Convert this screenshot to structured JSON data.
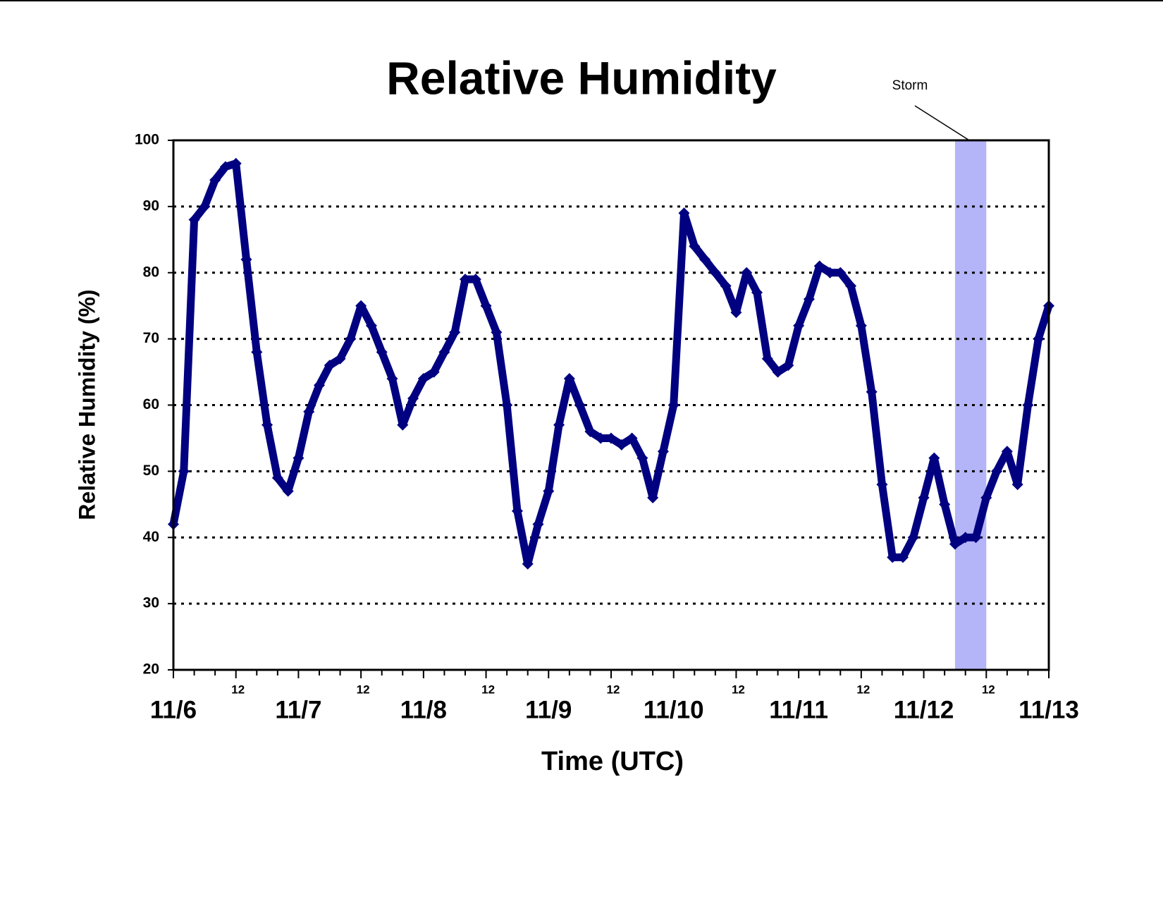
{
  "chart_data": {
    "type": "scatter",
    "title": "Relative Humidity",
    "xlabel": "Time (UTC)",
    "ylabel": "Relative Humidity (%)",
    "xlim": [
      0,
      168
    ],
    "ylim": [
      20,
      100
    ],
    "yticks": [
      20,
      30,
      40,
      50,
      60,
      70,
      80,
      90,
      100
    ],
    "xticks": [
      {
        "value": 0,
        "label": "11/6"
      },
      {
        "value": 12,
        "label": "12"
      },
      {
        "value": 24,
        "label": "11/7"
      },
      {
        "value": 36,
        "label": "12"
      },
      {
        "value": 48,
        "label": "11/8"
      },
      {
        "value": 60,
        "label": "12"
      },
      {
        "value": 72,
        "label": "11/9"
      },
      {
        "value": 84,
        "label": "12"
      },
      {
        "value": 96,
        "label": "11/10"
      },
      {
        "value": 108,
        "label": "12"
      },
      {
        "value": 120,
        "label": "11/11"
      },
      {
        "value": 132,
        "label": "12"
      },
      {
        "value": 144,
        "label": "11/12"
      },
      {
        "value": 156,
        "label": "12"
      },
      {
        "value": 168,
        "label": "11/13"
      }
    ],
    "xminorticks": [
      4,
      8,
      16,
      20,
      28,
      32,
      40,
      44,
      52,
      56,
      64,
      68,
      76,
      80,
      88,
      92,
      100,
      104,
      112,
      116,
      124,
      128,
      136,
      140,
      148,
      152,
      160,
      164
    ],
    "grid": true,
    "annotation": {
      "text": "Storm",
      "xrange": [
        150,
        156
      ],
      "color": "#b4b4f8"
    },
    "series": [
      {
        "name": "Relative Humidity",
        "color": "#000080",
        "x": [
          0,
          2,
          4,
          6,
          8,
          10,
          12,
          14,
          16,
          18,
          20,
          22,
          24,
          26,
          28,
          30,
          32,
          34,
          36,
          38,
          40,
          42,
          44,
          46,
          48,
          50,
          52,
          54,
          56,
          58,
          60,
          62,
          64,
          66,
          68,
          70,
          72,
          74,
          76,
          78,
          80,
          82,
          84,
          86,
          88,
          90,
          92,
          94,
          96,
          98,
          100,
          102,
          104,
          106,
          108,
          110,
          112,
          114,
          116,
          118,
          120,
          122,
          124,
          126,
          128,
          130,
          132,
          134,
          136,
          138,
          140,
          142,
          144,
          146,
          148,
          150,
          152,
          154,
          156,
          158,
          160,
          162,
          164,
          166,
          168
        ],
        "values": [
          42,
          50,
          88,
          90,
          94,
          96,
          96.5,
          82,
          68,
          57,
          49,
          47,
          52,
          59,
          63,
          66,
          67,
          70,
          75,
          72,
          68,
          64,
          57,
          61,
          64,
          65,
          68,
          71,
          79,
          79,
          75,
          71,
          60,
          44,
          36,
          42,
          47,
          57,
          64,
          60,
          56,
          55,
          55,
          54,
          55,
          52,
          46,
          53,
          60,
          89,
          84,
          82,
          80,
          78,
          74,
          80,
          77,
          67,
          65,
          66,
          72,
          76,
          81,
          80,
          80,
          78,
          72,
          62,
          48,
          37,
          37,
          40,
          46,
          52,
          45,
          39,
          40,
          40,
          46,
          50,
          53,
          48,
          60,
          70,
          75
        ]
      }
    ]
  }
}
